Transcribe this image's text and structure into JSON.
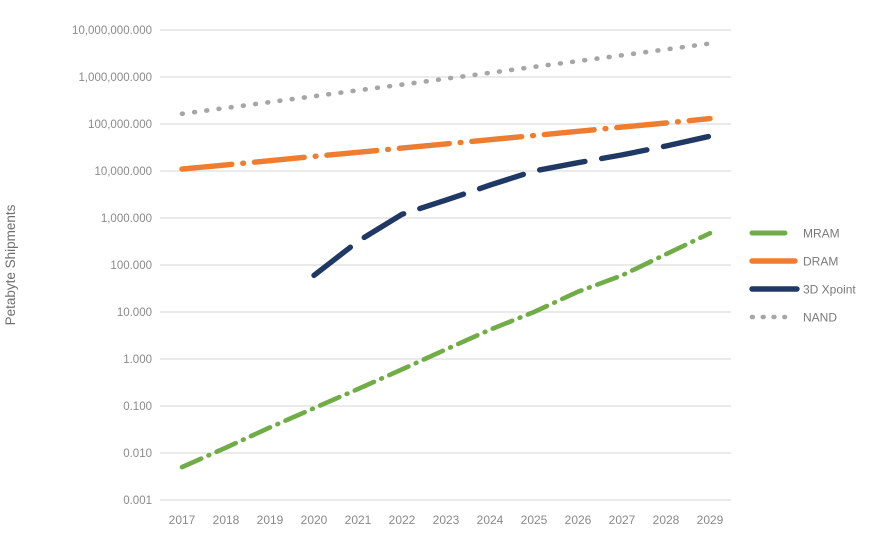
{
  "chart_data": {
    "type": "line",
    "title": "",
    "xlabel": "",
    "ylabel": "Petabyte Shipments",
    "grid": true,
    "legend_position": "right",
    "x_categories": [
      "2017",
      "2018",
      "2019",
      "2020",
      "2021",
      "2022",
      "2023",
      "2024",
      "2025",
      "2026",
      "2027",
      "2028",
      "2029"
    ],
    "y_axis": {
      "scale": "log",
      "min": 0.001,
      "max": 10000000,
      "tick_labels": [
        "10,000,000.000",
        "1,000,000.000",
        "100,000.000",
        "10,000.000",
        "1,000.000",
        "100.000",
        "10.000",
        "1.000",
        "0.100",
        "0.010",
        "0.001"
      ],
      "tick_values": [
        10000000,
        1000000,
        100000,
        10000,
        1000,
        100,
        10,
        1,
        0.1,
        0.01,
        0.001
      ]
    },
    "series": [
      {
        "name": "MRAM",
        "color": "#70AD47",
        "dash": "long-dash-dot-small",
        "values": [
          0.005,
          0.013,
          0.035,
          0.09,
          0.23,
          0.6,
          1.6,
          4.2,
          10,
          27,
          60,
          170,
          475
        ]
      },
      {
        "name": "DRAM",
        "color": "#ED7D31",
        "dash": "long-dash-dot",
        "values": [
          11000,
          13500,
          16600,
          20400,
          25000,
          30700,
          37700,
          46300,
          56900,
          69900,
          85800,
          105000,
          130000
        ]
      },
      {
        "name": "3D Xpoint",
        "color": "#1F3864",
        "dash": "long-dash",
        "values": [
          null,
          null,
          null,
          60,
          320,
          1200,
          2400,
          5000,
          10000,
          15000,
          22000,
          34000,
          55000
        ]
      },
      {
        "name": "NAND",
        "color": "#A6A6A6",
        "dash": "round-dot",
        "values": [
          165000,
          220000,
          293000,
          390000,
          520000,
          690000,
          920000,
          1230000,
          1640000,
          2180000,
          2900000,
          3870000,
          5150000
        ]
      }
    ],
    "colors": {
      "gridline": "#e4e4e4",
      "tick_text": "#8a8a8a",
      "axis_title_text": "#6f6f6f",
      "legend_text": "#7a7a7a"
    }
  }
}
